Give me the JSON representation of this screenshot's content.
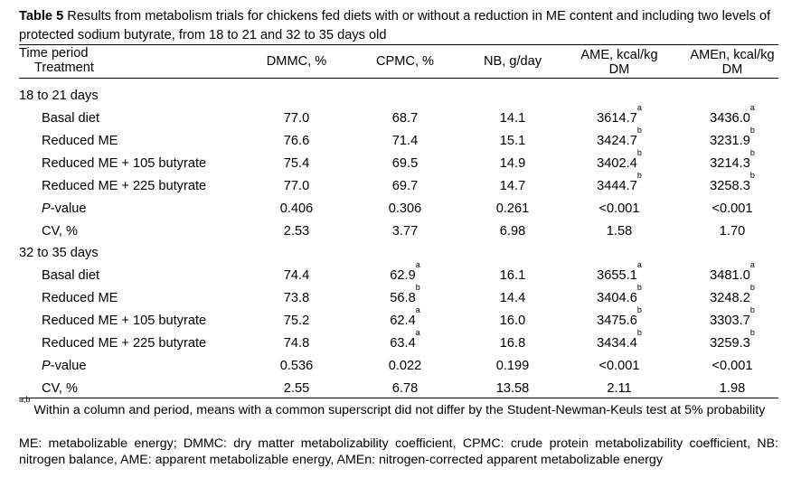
{
  "caption": {
    "label": "Table 5",
    "text": " Results from metabolism trials for chickens fed diets with or without a reduction in ME content and including two levels of protected sodium butyrate, from 18 to 21 and 32 to 35 days old"
  },
  "header": {
    "col0_line1": "Time period",
    "col0_line2": "Treatment",
    "cols": [
      {
        "line1": "DMMC, %",
        "line2": ""
      },
      {
        "line1": "CPMC, %",
        "line2": ""
      },
      {
        "line1": "NB, g/day",
        "line2": ""
      },
      {
        "line1": "AME, kcal/kg",
        "line2": "DM"
      },
      {
        "line1": "AMEn, kcal/kg",
        "line2": "DM"
      }
    ]
  },
  "periods": [
    {
      "title": "18 to 21 days",
      "rows": [
        {
          "label": "Basal diet",
          "italic_prefix": "",
          "vals": [
            {
              "v": "77.0",
              "s": ""
            },
            {
              "v": "68.7",
              "s": ""
            },
            {
              "v": "14.1",
              "s": ""
            },
            {
              "v": "3614.7",
              "s": "a"
            },
            {
              "v": "3436.0",
              "s": "a"
            }
          ]
        },
        {
          "label": "Reduced ME",
          "italic_prefix": "",
          "vals": [
            {
              "v": "76.6",
              "s": ""
            },
            {
              "v": "71.4",
              "s": ""
            },
            {
              "v": "15.1",
              "s": ""
            },
            {
              "v": "3424.7",
              "s": "b"
            },
            {
              "v": "3231.9",
              "s": "b"
            }
          ]
        },
        {
          "label": "Reduced ME + 105 butyrate",
          "italic_prefix": "",
          "vals": [
            {
              "v": "75.4",
              "s": ""
            },
            {
              "v": "69.5",
              "s": ""
            },
            {
              "v": "14.9",
              "s": ""
            },
            {
              "v": "3402.4",
              "s": "b"
            },
            {
              "v": "3214.3",
              "s": "b"
            }
          ]
        },
        {
          "label": "Reduced ME + 225 butyrate",
          "italic_prefix": "",
          "vals": [
            {
              "v": "77.0",
              "s": ""
            },
            {
              "v": "69.7",
              "s": ""
            },
            {
              "v": "14.7",
              "s": ""
            },
            {
              "v": "3444.7",
              "s": "b"
            },
            {
              "v": "3258.3",
              "s": "b"
            }
          ]
        },
        {
          "label": "-value",
          "italic_prefix": "P",
          "vals": [
            {
              "v": "0.406",
              "s": ""
            },
            {
              "v": "0.306",
              "s": ""
            },
            {
              "v": "0.261",
              "s": ""
            },
            {
              "v": "<0.001",
              "s": ""
            },
            {
              "v": "<0.001",
              "s": ""
            }
          ]
        },
        {
          "label": "CV, %",
          "italic_prefix": "",
          "vals": [
            {
              "v": "2.53",
              "s": ""
            },
            {
              "v": "3.77",
              "s": ""
            },
            {
              "v": "6.98",
              "s": ""
            },
            {
              "v": "1.58",
              "s": ""
            },
            {
              "v": "1.70",
              "s": ""
            }
          ]
        }
      ]
    },
    {
      "title": "32 to 35 days",
      "rows": [
        {
          "label": "Basal diet",
          "italic_prefix": "",
          "vals": [
            {
              "v": "74.4",
              "s": ""
            },
            {
              "v": "62.9",
              "s": "a"
            },
            {
              "v": "16.1",
              "s": ""
            },
            {
              "v": "3655.1",
              "s": "a"
            },
            {
              "v": "3481.0",
              "s": "a"
            }
          ]
        },
        {
          "label": "Reduced ME",
          "italic_prefix": "",
          "vals": [
            {
              "v": "73.8",
              "s": ""
            },
            {
              "v": "56.8",
              "s": "b"
            },
            {
              "v": "14.4",
              "s": ""
            },
            {
              "v": "3404.6",
              "s": "b"
            },
            {
              "v": "3248.2",
              "s": "b"
            }
          ]
        },
        {
          "label": "Reduced ME + 105 butyrate",
          "italic_prefix": "",
          "vals": [
            {
              "v": "75.2",
              "s": ""
            },
            {
              "v": "62.4",
              "s": "a"
            },
            {
              "v": "16.0",
              "s": ""
            },
            {
              "v": "3475.6",
              "s": "b"
            },
            {
              "v": "3303.7",
              "s": "b"
            }
          ]
        },
        {
          "label": "Reduced ME + 225 butyrate",
          "italic_prefix": "",
          "vals": [
            {
              "v": "74.8",
              "s": ""
            },
            {
              "v": "63.4",
              "s": "a"
            },
            {
              "v": "16.8",
              "s": ""
            },
            {
              "v": "3434.4",
              "s": "b"
            },
            {
              "v": "3259.3",
              "s": "b"
            }
          ]
        },
        {
          "label": "-value",
          "italic_prefix": "P",
          "vals": [
            {
              "v": "0.536",
              "s": ""
            },
            {
              "v": "0.022",
              "s": ""
            },
            {
              "v": "0.199",
              "s": ""
            },
            {
              "v": "<0.001",
              "s": ""
            },
            {
              "v": "<0.001",
              "s": ""
            }
          ]
        },
        {
          "label": "CV, %",
          "italic_prefix": "",
          "vals": [
            {
              "v": "2.55",
              "s": ""
            },
            {
              "v": "6.78",
              "s": ""
            },
            {
              "v": "13.58",
              "s": ""
            },
            {
              "v": "2.11",
              "s": ""
            },
            {
              "v": "1.98",
              "s": ""
            }
          ]
        }
      ]
    }
  ],
  "footnotes": {
    "sup": "a,b",
    "note1": " Within a column and period, means with a common superscript did not differ by the Student-Newman-Keuls test at 5% probability",
    "note2": "ME: metabolizable energy; DMMC: dry matter metabolizability coefficient, CPMC: crude protein metabolizability coefficient, NB: nitrogen balance, AME: apparent metabolizable energy, AMEn: nitrogen-corrected apparent metabolizable energy"
  }
}
